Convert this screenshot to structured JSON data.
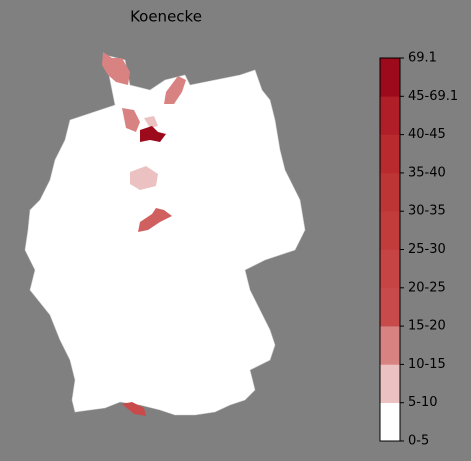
{
  "title": "Koenecke",
  "legend": {
    "labels": [
      "0-5",
      "5-10",
      "10-15",
      "15-20",
      "20-25",
      "25-30",
      "30-35",
      "35-40",
      "40-45",
      "45-69.1",
      "69.1"
    ],
    "colors": [
      "#ffffff",
      "#ecc1c1",
      "#d98282",
      "#c94a4a",
      "#c64444",
      "#c23c3c",
      "#be3535",
      "#b92a2e",
      "#b01f27",
      "#9c0a1c"
    ]
  }
}
